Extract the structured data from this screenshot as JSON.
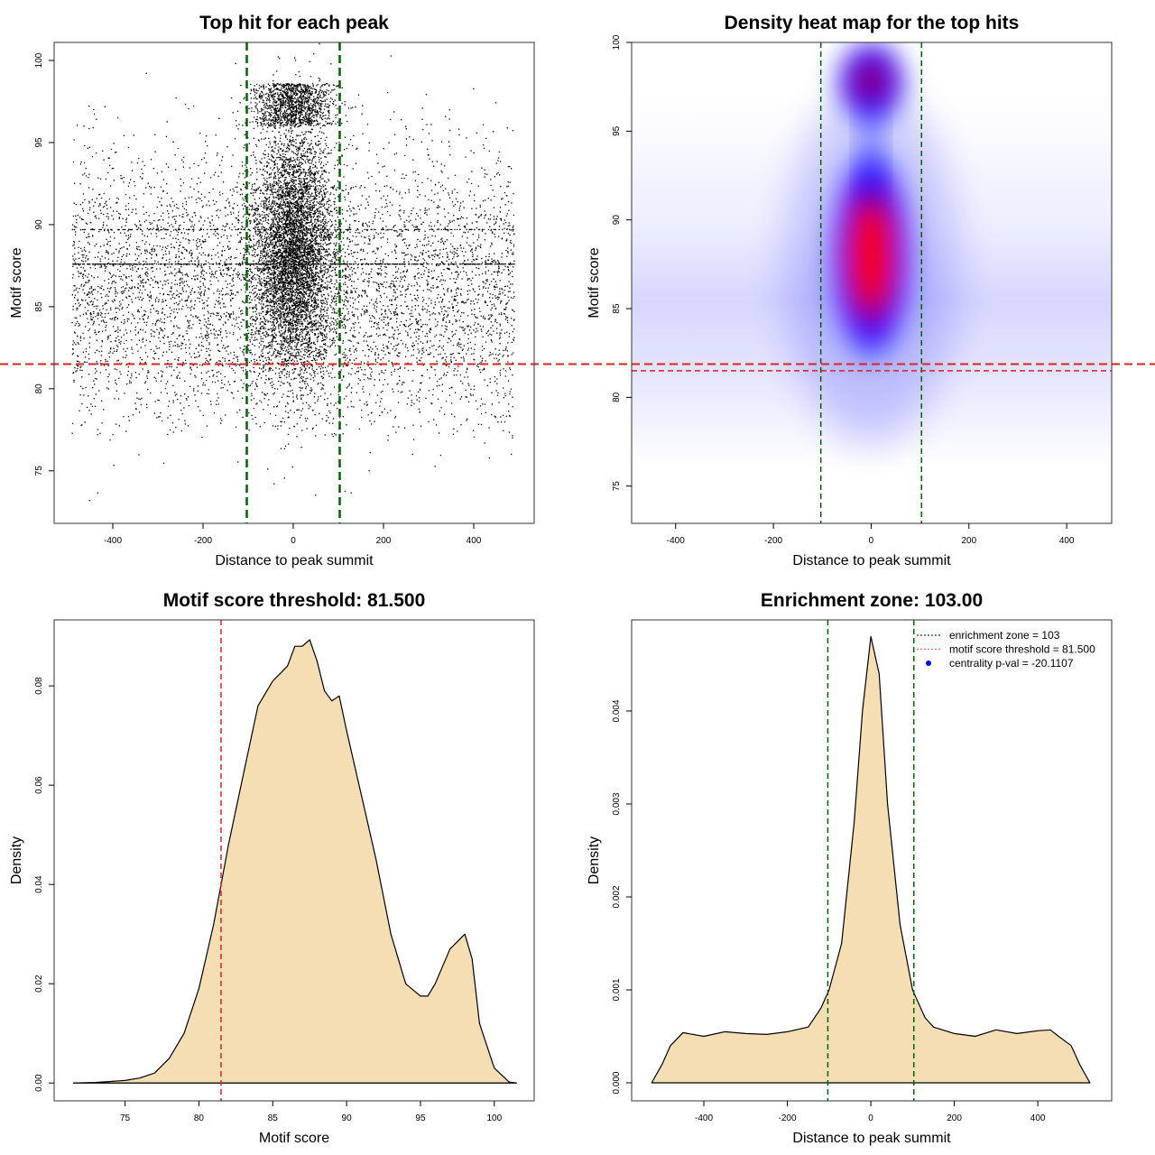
{
  "chart_data": [
    {
      "type": "scatter",
      "title": "Top hit for each peak",
      "xlabel": "Distance to peak summit",
      "ylabel": "Motif score",
      "xlim": [
        -530,
        534
      ],
      "ylim": [
        71.8,
        101.1
      ],
      "xticks": [
        -400,
        -200,
        0,
        200,
        400
      ],
      "yticks": [
        75,
        80,
        85,
        90,
        95,
        100
      ],
      "vlines": {
        "values": [
          -103,
          103
        ],
        "color": "#006400",
        "style": "dashed"
      },
      "hline": {
        "value": 81.5,
        "color": "#dd2222",
        "style": "dashed"
      },
      "point_color": "#000000",
      "grid": false
    },
    {
      "type": "heatmap",
      "title": "Density heat map for the top hits",
      "xlabel": "Distance to peak summit",
      "ylabel": "Motif score",
      "xlim": [
        -490,
        492
      ],
      "ylim": [
        72.9,
        100
      ],
      "xticks": [
        -400,
        -200,
        0,
        200,
        400
      ],
      "yticks": [
        75,
        80,
        85,
        90,
        95,
        100
      ],
      "vlines": {
        "values": [
          -103,
          103
        ],
        "color": "#006400",
        "style": "dashed"
      },
      "hline": {
        "value": 81.5,
        "color": "#cc2233",
        "style": "dashed"
      },
      "color_scale": [
        "#ffffff",
        "#0000ff",
        "#ff0000"
      ],
      "hotspots": [
        {
          "x": 0,
          "y": 88
        },
        {
          "x": 0,
          "y": 97.8
        }
      ],
      "grid": false
    },
    {
      "type": "area",
      "title": "Motif score threshold: 81.500",
      "xlabel": "Motif score",
      "ylabel": "Density",
      "xlim": [
        70.2,
        102.7
      ],
      "ylim": [
        -0.0036,
        0.0933
      ],
      "xticks": [
        75,
        80,
        85,
        90,
        95,
        100
      ],
      "yticks": [
        0.0,
        0.02,
        0.04,
        0.06,
        0.08
      ],
      "ytick_labels": [
        "0.00",
        "0.02",
        "0.04",
        "0.06",
        "0.08"
      ],
      "fill_color": "#f5deb3",
      "vlines": {
        "values": [
          81.5
        ],
        "color": "#dd2222",
        "style": "dashed"
      },
      "x": [
        71.5,
        73,
        75,
        76,
        77,
        78,
        79,
        80,
        81,
        82,
        83,
        84,
        85,
        86,
        86.5,
        87,
        87.5,
        88,
        88.5,
        89,
        89.5,
        90,
        91,
        92,
        93,
        94,
        95,
        95.5,
        96,
        97,
        98,
        98.5,
        99,
        100,
        101,
        101.5
      ],
      "y": [
        0,
        0.0001,
        0.0005,
        0.001,
        0.002,
        0.005,
        0.01,
        0.019,
        0.032,
        0.048,
        0.062,
        0.076,
        0.081,
        0.084,
        0.088,
        0.088,
        0.0893,
        0.085,
        0.079,
        0.077,
        0.078,
        0.071,
        0.058,
        0.045,
        0.03,
        0.02,
        0.0175,
        0.0175,
        0.02,
        0.027,
        0.03,
        0.025,
        0.012,
        0.003,
        0.0002,
        0
      ],
      "grid": false
    },
    {
      "type": "area",
      "title": "Enrichment zone: 103.00",
      "xlabel": "Distance to peak summit",
      "ylabel": "Density",
      "xlim": [
        -573,
        577
      ],
      "ylim": [
        -0.000194,
        0.00498
      ],
      "xticks": [
        -400,
        -200,
        0,
        200,
        400
      ],
      "yticks": [
        0,
        0.001,
        0.002,
        0.003,
        0.004
      ],
      "ytick_labels": [
        "0.000",
        "0.001",
        "0.002",
        "0.003",
        "0.004"
      ],
      "fill_color": "#f5deb3",
      "vlines": {
        "values": [
          -103,
          103
        ],
        "color": "#006400",
        "style": "dashed"
      },
      "x": [
        -525,
        -500,
        -480,
        -450,
        -400,
        -350,
        -300,
        -250,
        -200,
        -150,
        -120,
        -100,
        -70,
        -40,
        -20,
        0,
        20,
        40,
        70,
        100,
        130,
        150,
        200,
        250,
        300,
        350,
        400,
        430,
        450,
        480,
        500,
        525
      ],
      "y": [
        0,
        0.0002,
        0.0004,
        0.00054,
        0.0005,
        0.00055,
        0.00053,
        0.00052,
        0.00055,
        0.0006,
        0.0008,
        0.001,
        0.0015,
        0.0028,
        0.004,
        0.0048,
        0.0044,
        0.003,
        0.0017,
        0.001,
        0.0007,
        0.0006,
        0.00053,
        0.0005,
        0.00057,
        0.00053,
        0.00056,
        0.00057,
        0.0005,
        0.0004,
        0.0002,
        0
      ],
      "legend": {
        "placement": "top-right",
        "entries": [
          {
            "label": "enrichment zone = 103",
            "color": "#006400",
            "symbol": "dotted-line"
          },
          {
            "label": "motif score threshold = 81.500",
            "color": "#ff6666",
            "symbol": "dotted-line"
          },
          {
            "label": "centrality p-val = -20.1107",
            "color": "#0000ff",
            "symbol": "dot"
          }
        ]
      },
      "grid": false
    }
  ]
}
